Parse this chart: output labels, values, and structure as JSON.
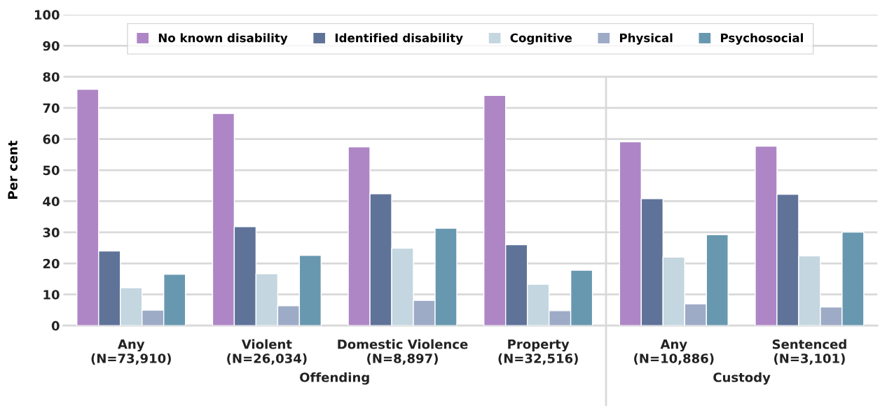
{
  "chart_data": {
    "type": "bar",
    "ylabel": "Per cent",
    "categories": [
      "Any\n(N=73,910)",
      "Violent\n(N=26,034)",
      "Domestic Violence\n(N=8,897)",
      "Property\n(N=32,516)",
      "Any\n(N=10,886)",
      "Sentenced\n(N=3,101)"
    ],
    "series": [
      {
        "name": "No known disability",
        "color": "#ae86c6",
        "values": [
          76,
          68.2,
          57.5,
          74,
          59.1,
          57.7
        ]
      },
      {
        "name": "Identified disability",
        "color": "#5f7399",
        "values": [
          24,
          31.8,
          42.4,
          26,
          40.8,
          42.2
        ]
      },
      {
        "name": "Cognitive",
        "color": "#c4d6e0",
        "values": [
          12.2,
          16.7,
          24.9,
          13.3,
          22,
          22.4
        ]
      },
      {
        "name": "Physical",
        "color": "#9eabc6",
        "values": [
          5,
          6.4,
          8.1,
          4.8,
          7,
          6
        ]
      },
      {
        "name": "Psychosocial",
        "color": "#6898b0",
        "values": [
          16.5,
          22.6,
          31.3,
          17.8,
          29.2,
          30.1
        ]
      }
    ],
    "ylim": [
      0,
      100
    ],
    "yticks": [
      0,
      10,
      20,
      30,
      40,
      50,
      60,
      70,
      80,
      90,
      100
    ],
    "grid": "y",
    "legend": "top",
    "annotations": [
      "Offending",
      "Custody"
    ]
  }
}
